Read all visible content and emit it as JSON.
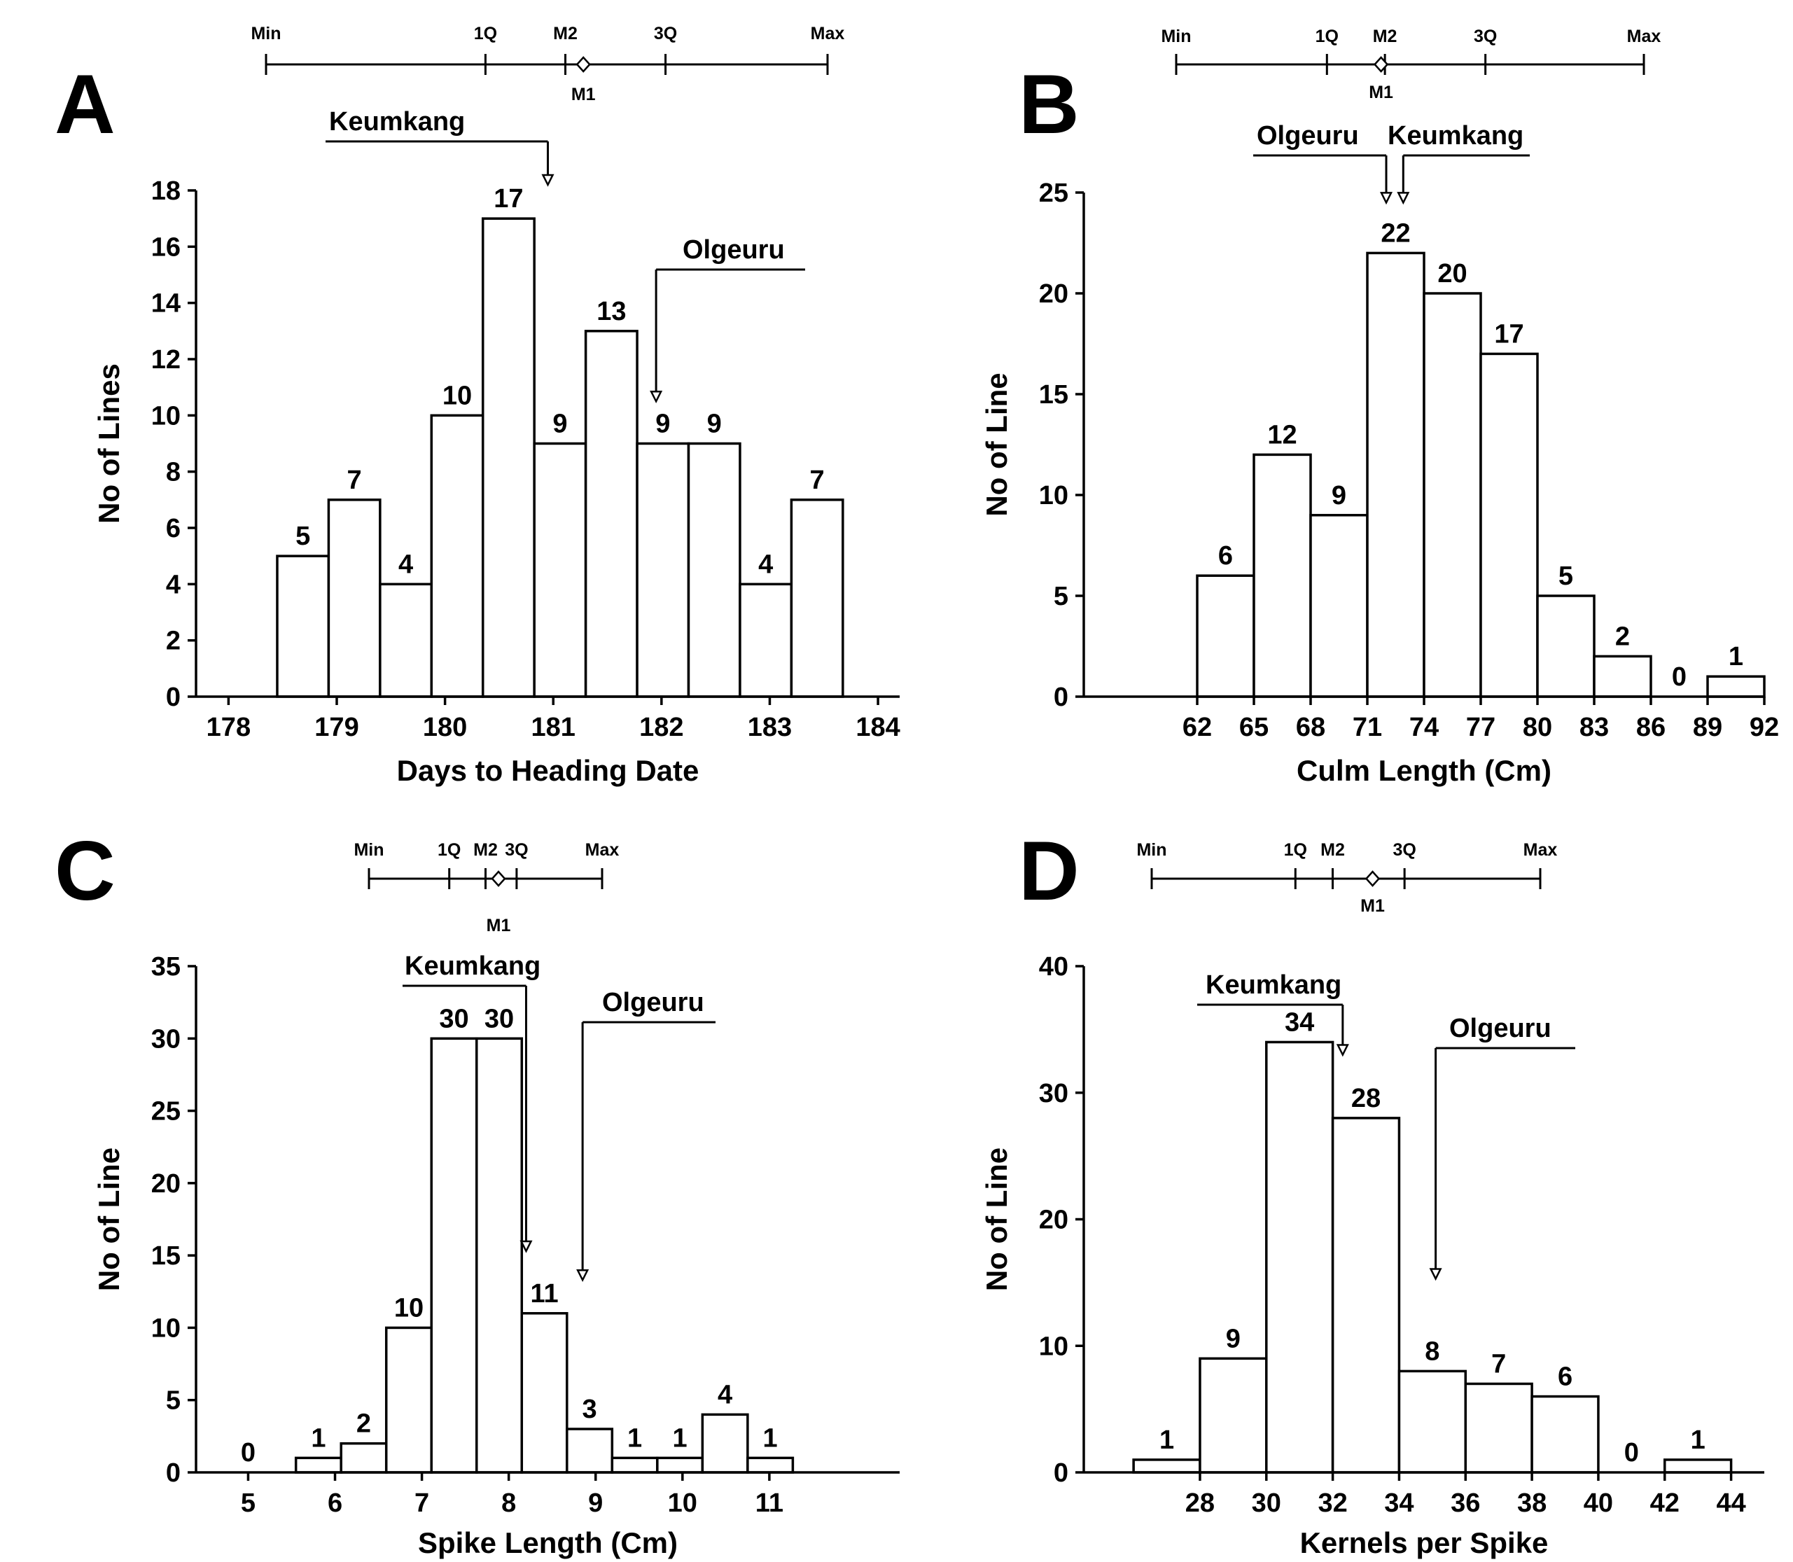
{
  "chart_data": [
    {
      "panel": "A",
      "type": "bar",
      "xlabel": "Days to Heading Date",
      "ylabel": "No of Lines",
      "ylim": [
        0,
        18
      ],
      "yticks": [
        0,
        2,
        4,
        6,
        8,
        10,
        12,
        14,
        16,
        18
      ],
      "xlim": [
        177.7,
        184.2
      ],
      "xticks": [
        "178",
        "179",
        "180",
        "181",
        "182",
        "183",
        "184"
      ],
      "bin_width": 0.475,
      "bin_start": 178.45,
      "values": [
        5,
        7,
        4,
        10,
        17,
        9,
        13,
        9,
        9,
        4,
        7
      ],
      "summary": {
        "Min": 178.45,
        "1Q": 180.4,
        "M2": 181.11,
        "M1": 181.27,
        "3Q": 182.0,
        "Max": 183.44
      },
      "box_labels": {
        "min": "Min",
        "q1": "1Q",
        "m2": "M2",
        "m1": "M1",
        "q3": "3Q",
        "max": "Max"
      },
      "cultivars": [
        {
          "name": "Keumkang",
          "x": 180.95,
          "y": 18.2
        },
        {
          "name": "Olgeuru",
          "x": 181.95,
          "y": 10.5
        }
      ]
    },
    {
      "panel": "B",
      "type": "bar",
      "xlabel": "Culm Length (Cm)",
      "ylabel": "No of Line",
      "ylim": [
        0,
        25
      ],
      "yticks": [
        0,
        5,
        10,
        15,
        20,
        25
      ],
      "xlim": [
        56,
        92
      ],
      "xticks": [
        "62",
        "65",
        "68",
        "71",
        "74",
        "77",
        "80",
        "83",
        "86",
        "89",
        "92"
      ],
      "bin_width": 3,
      "bin_start": 62,
      "values": [
        6,
        12,
        9,
        22,
        20,
        17,
        5,
        2,
        0,
        1
      ],
      "summary": {
        "Min": 62,
        "1Q": 69.8,
        "M2": 72.8,
        "M1": 72.6,
        "3Q": 78.0,
        "Max": 86.2
      },
      "box_labels": {
        "min": "Min",
        "q1": "1Q",
        "m2": "M2",
        "m1": "M1",
        "q3": "3Q",
        "max": "Max"
      },
      "cultivars": [
        {
          "name": "Olgeuru",
          "x": 72.0,
          "y": 24.5
        },
        {
          "name": "Keumkang",
          "x": 72.9,
          "y": 24.5
        }
      ]
    },
    {
      "panel": "C",
      "type": "bar",
      "xlabel": "Spike Length (Cm)",
      "ylabel": "No of Line",
      "ylim": [
        0,
        35
      ],
      "yticks": [
        0,
        5,
        10,
        15,
        20,
        25,
        30,
        35
      ],
      "xlim": [
        4.4,
        12.5
      ],
      "xticks": [
        "5",
        "6",
        "7",
        "8",
        "9",
        "10",
        "11"
      ],
      "bin_width": 0.52,
      "bin_start": 5.55,
      "values": [
        1,
        2,
        10,
        30,
        30,
        11,
        3,
        1,
        1,
        4,
        1
      ],
      "zero_label": {
        "x": 5.0,
        "value": 0
      },
      "summary": {
        "Min": 5.55,
        "1Q": 6.48,
        "M2": 6.9,
        "M1": 7.05,
        "3Q": 7.26,
        "Max": 8.25
      },
      "box_labels": {
        "min": "Min",
        "q1": "1Q",
        "m2": "M2",
        "m1": "M1",
        "q3": "3Q",
        "max": "Max"
      },
      "cultivars": [
        {
          "name": "Keumkang",
          "x": 8.2,
          "y": 15.3
        },
        {
          "name": "Olgeuru",
          "x": 8.85,
          "y": 13.3
        }
      ]
    },
    {
      "panel": "D",
      "type": "bar",
      "xlabel": "Kernels per Spike",
      "ylabel": "No of Line",
      "ylim": [
        0,
        40
      ],
      "yticks": [
        0,
        10,
        20,
        30,
        40
      ],
      "xlim": [
        24.5,
        45
      ],
      "xticks": [
        "28",
        "30",
        "32",
        "34",
        "36",
        "38",
        "40",
        "42",
        "44"
      ],
      "bin_width": 2,
      "bin_start": 26,
      "values": [
        1,
        9,
        34,
        28,
        8,
        7,
        6,
        0,
        1
      ],
      "summary": {
        "Min": 26.0,
        "1Q": 31.4,
        "M2": 32.8,
        "M1": 34.3,
        "3Q": 35.5,
        "Max": 40.6
      },
      "box_labels": {
        "min": "Min",
        "q1": "1Q",
        "m2": "M2",
        "m1": "M1",
        "q3": "3Q",
        "max": "Max"
      },
      "cultivars": [
        {
          "name": "Keumkang",
          "x": 32.3,
          "y": 33.0
        },
        {
          "name": "Olgeuru",
          "x": 35.1,
          "y": 15.3
        }
      ]
    }
  ]
}
